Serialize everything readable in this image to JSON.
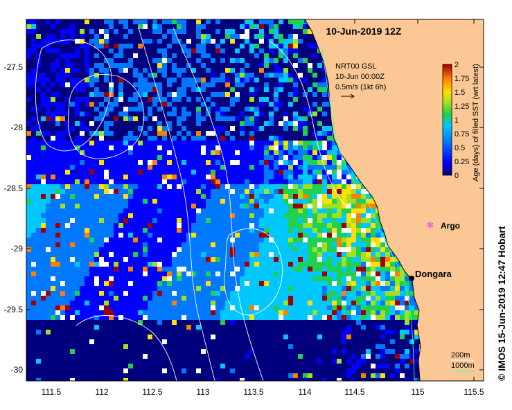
{
  "title": "10-Jun-2019 12Z",
  "credit": "© IMOS 15-Jun-2019 12:47 Hobart",
  "current_legend": {
    "line1": "NRT00 GSL",
    "line2": "10-Jun 00:00Z",
    "line3": "0.5m/s (1kt 6h)"
  },
  "colorbar": {
    "label": "Age (days) of filled SST (wrt latest)",
    "ticks": [
      "2",
      "1.75",
      "1.5",
      "1.25",
      "1",
      "0.75",
      "0.5",
      "0.25",
      "0"
    ],
    "colors": [
      "#00007f",
      "#0000ff",
      "#0078ff",
      "#00c8ff",
      "#20d050",
      "#a0e020",
      "#ffe000",
      "#ff8000",
      "#a00000"
    ]
  },
  "axes": {
    "lat_labels": [
      "-27.5",
      "-28",
      "-28.5",
      "-29",
      "-29.5",
      "-30"
    ],
    "lon_labels": [
      "111.5",
      "112",
      "112.5",
      "113",
      "113.5",
      "114",
      "114.5",
      "115",
      "115.5"
    ]
  },
  "places": {
    "argo": "Argo",
    "dongara": "Dongara"
  },
  "contour_legend": {
    "c200": "200m",
    "c1000": "1000m"
  },
  "colors": {
    "land": "#fbc795",
    "argo": "#e040ff",
    "contour_200": "#40ffc0",
    "contour_1000": "#ffffff"
  }
}
